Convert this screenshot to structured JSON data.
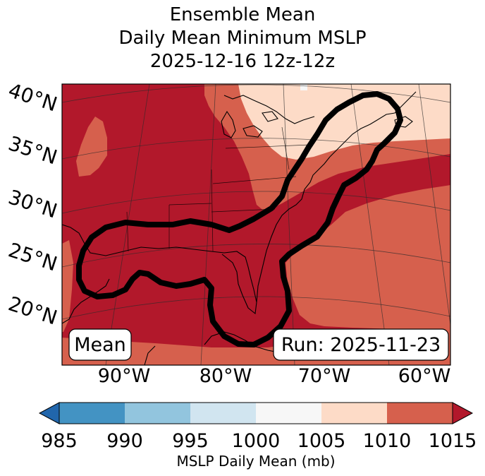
{
  "title": {
    "line1": "Ensemble Mean",
    "line2": "Daily Mean Minimum MSLP",
    "line3": "2025-12-16 12z-12z"
  },
  "map": {
    "lat_labels": [
      "40°N",
      "35°N",
      "30°N",
      "25°N",
      "20°N"
    ],
    "lon_labels": [
      "90°W",
      "80°W",
      "70°W",
      "60°W"
    ],
    "box_left": "Mean",
    "box_right": "Run: 2025-11-23"
  },
  "colorbar": {
    "title": "MSLP Daily Mean (mb)",
    "ticks": [
      "985",
      "990",
      "995",
      "1000",
      "1005",
      "1010",
      "1015"
    ],
    "bins": [
      {
        "range": "<985",
        "color": "#2166ac"
      },
      {
        "range": "985-990",
        "color": "#4393c3"
      },
      {
        "range": "990-995",
        "color": "#92c5de"
      },
      {
        "range": "995-1000",
        "color": "#d1e5f0"
      },
      {
        "range": "1000-1005",
        "color": "#f7f7f7"
      },
      {
        "range": "1005-1010",
        "color": "#fddbc7"
      },
      {
        "range": "1010-1015",
        "color": "#d6604d"
      },
      {
        "range": ">1015",
        "color": "#b2182b"
      }
    ]
  }
}
